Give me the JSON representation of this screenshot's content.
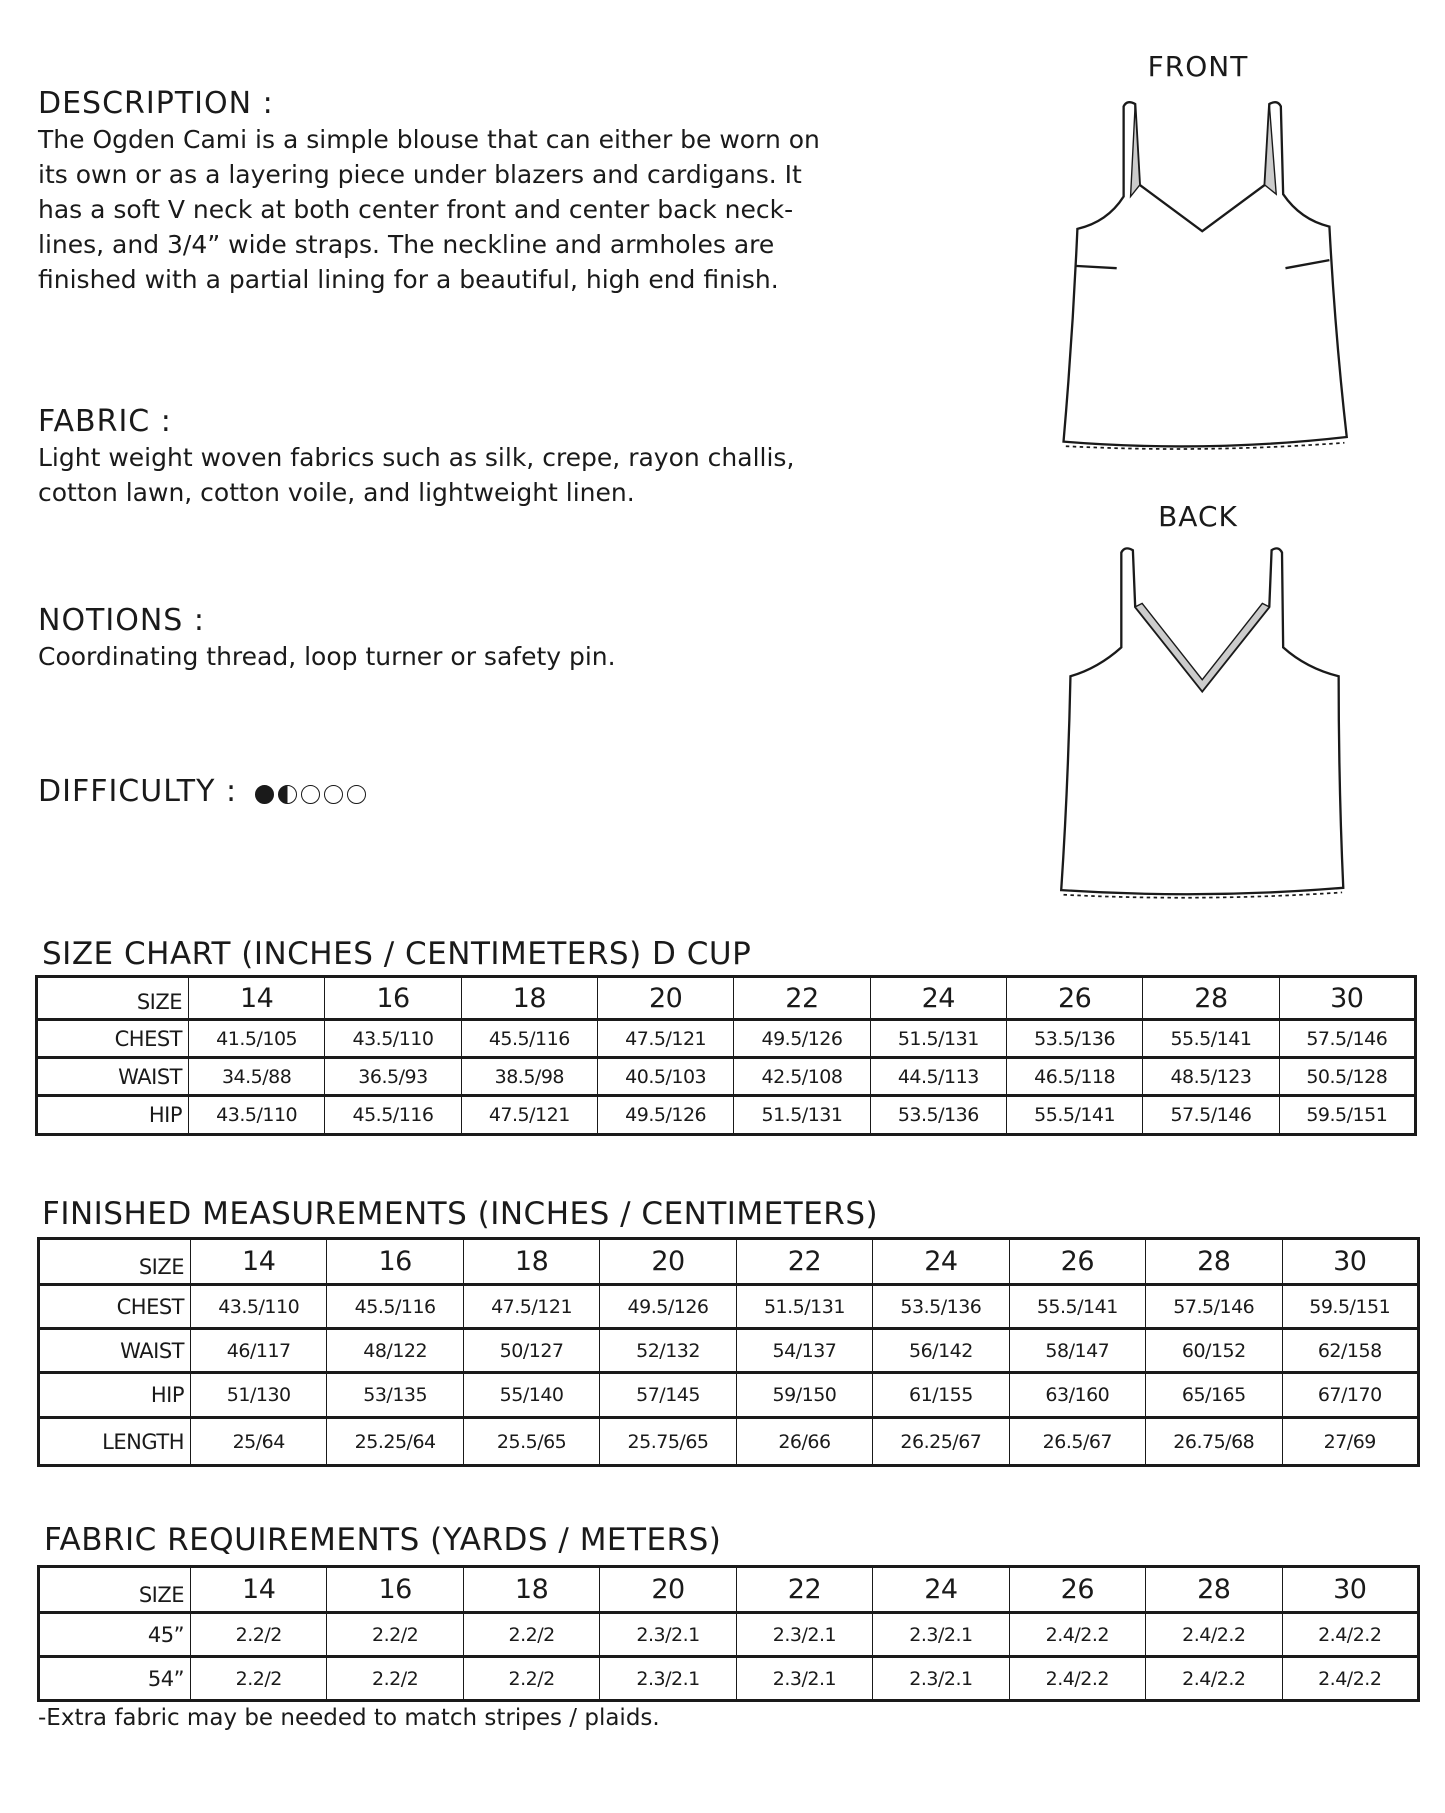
{
  "description": {
    "heading": "DESCRIPTION :",
    "lines": [
      "The Ogden Cami is a simple blouse that can either be worn on",
      "its own or as a layering piece under blazers and cardigans. It",
      "has a soft V neck at both center front and center back neck-",
      "lines, and 3/4” wide straps. The neckline and armholes are",
      "finished with a partial lining for a beautiful, high end finish."
    ]
  },
  "fabric": {
    "heading": "FABRIC :",
    "lines": [
      "Light weight woven fabrics such as silk, crepe, rayon challis,",
      "cotton lawn, cotton voile, and lightweight linen."
    ]
  },
  "notions": {
    "heading": "NOTIONS :",
    "lines": [
      "Coordinating thread, loop turner or safety pin."
    ]
  },
  "difficulty": {
    "heading": "DIFFICULTY :",
    "level": 1.5,
    "max": 5
  },
  "illustrations": {
    "front_label": "FRONT",
    "back_label": "BACK"
  },
  "size_chart": {
    "title": "SIZE CHART (INCHES / CENTIMETERS) D CUP",
    "header": [
      "SIZE",
      "14",
      "16",
      "18",
      "20",
      "22",
      "24",
      "26",
      "28",
      "30"
    ],
    "rows": [
      [
        "CHEST",
        "41.5/105",
        "43.5/110",
        "45.5/116",
        "47.5/121",
        "49.5/126",
        "51.5/131",
        "53.5/136",
        "55.5/141",
        "57.5/146"
      ],
      [
        "WAIST",
        "34.5/88",
        "36.5/93",
        "38.5/98",
        "40.5/103",
        "42.5/108",
        "44.5/113",
        "46.5/118",
        "48.5/123",
        "50.5/128"
      ],
      [
        "HIP",
        "43.5/110",
        "45.5/116",
        "47.5/121",
        "49.5/126",
        "51.5/131",
        "53.5/136",
        "55.5/141",
        "57.5/146",
        "59.5/151"
      ]
    ]
  },
  "finished": {
    "title": "FINISHED MEASUREMENTS (INCHES / CENTIMETERS)",
    "header": [
      "SIZE",
      "14",
      "16",
      "18",
      "20",
      "22",
      "24",
      "26",
      "28",
      "30"
    ],
    "rows": [
      [
        "CHEST",
        "43.5/110",
        "45.5/116",
        "47.5/121",
        "49.5/126",
        "51.5/131",
        "53.5/136",
        "55.5/141",
        "57.5/146",
        "59.5/151"
      ],
      [
        "WAIST",
        "46/117",
        "48/122",
        "50/127",
        "52/132",
        "54/137",
        "56/142",
        "58/147",
        "60/152",
        "62/158"
      ],
      [
        "HIP",
        "51/130",
        "53/135",
        "55/140",
        "57/145",
        "59/150",
        "61/155",
        "63/160",
        "65/165",
        "67/170"
      ],
      [
        "LENGTH",
        "25/64",
        "25.25/64",
        "25.5/65",
        "25.75/65",
        "26/66",
        "26.25/67",
        "26.5/67",
        "26.75/68",
        "27/69"
      ]
    ]
  },
  "fabric_req": {
    "title": "FABRIC REQUIREMENTS (YARDS / METERS)",
    "header": [
      "SIZE",
      "14",
      "16",
      "18",
      "20",
      "22",
      "24",
      "26",
      "28",
      "30"
    ],
    "rows": [
      [
        "45”",
        "2.2/2",
        "2.2/2",
        "2.2/2",
        "2.3/2.1",
        "2.3/2.1",
        "2.3/2.1",
        "2.4/2.2",
        "2.4/2.2",
        "2.4/2.2"
      ],
      [
        "54”",
        "2.2/2",
        "2.2/2",
        "2.2/2",
        "2.3/2.1",
        "2.3/2.1",
        "2.3/2.1",
        "2.4/2.2",
        "2.4/2.2",
        "2.4/2.2"
      ]
    ],
    "note": "-Extra fabric may be needed to match stripes / plaids."
  }
}
